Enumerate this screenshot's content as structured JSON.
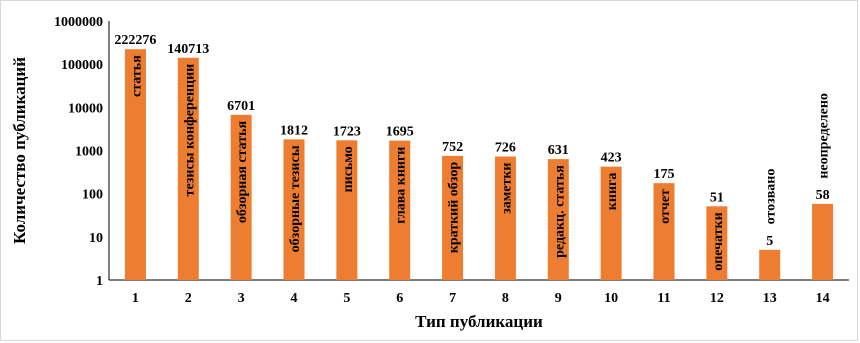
{
  "chart_data": {
    "type": "bar",
    "title": "",
    "xlabel": "Тип публикации",
    "ylabel": "Количество публикаций",
    "yscale": "log",
    "ylim": [
      1,
      1000000
    ],
    "yticks": [
      "1",
      "10",
      "100",
      "1000",
      "10000",
      "100000",
      "1000000"
    ],
    "grid": false,
    "legend": "none",
    "bar_color": "#ed7d31",
    "categories": [
      "1",
      "2",
      "3",
      "4",
      "5",
      "6",
      "7",
      "8",
      "9",
      "10",
      "11",
      "12",
      "13",
      "14"
    ],
    "values": [
      222276,
      140713,
      6701,
      1812,
      1723,
      1695,
      752,
      726,
      631,
      423,
      175,
      51,
      5,
      58
    ],
    "value_labels": [
      "222276",
      "140713",
      "6701",
      "1812",
      "1723",
      "1695",
      "752",
      "726",
      "631",
      "423",
      "175",
      "51",
      "5",
      "58"
    ],
    "bar_labels": [
      "статья",
      "тезисы конференции",
      "обзорная статья",
      "обзорные тезисы",
      "письмо",
      "глава книги",
      "краткий обзор",
      "заметки",
      "редакц. статья",
      "книга",
      "отчет",
      "опечатки",
      "отозвано",
      "неопределено"
    ]
  }
}
